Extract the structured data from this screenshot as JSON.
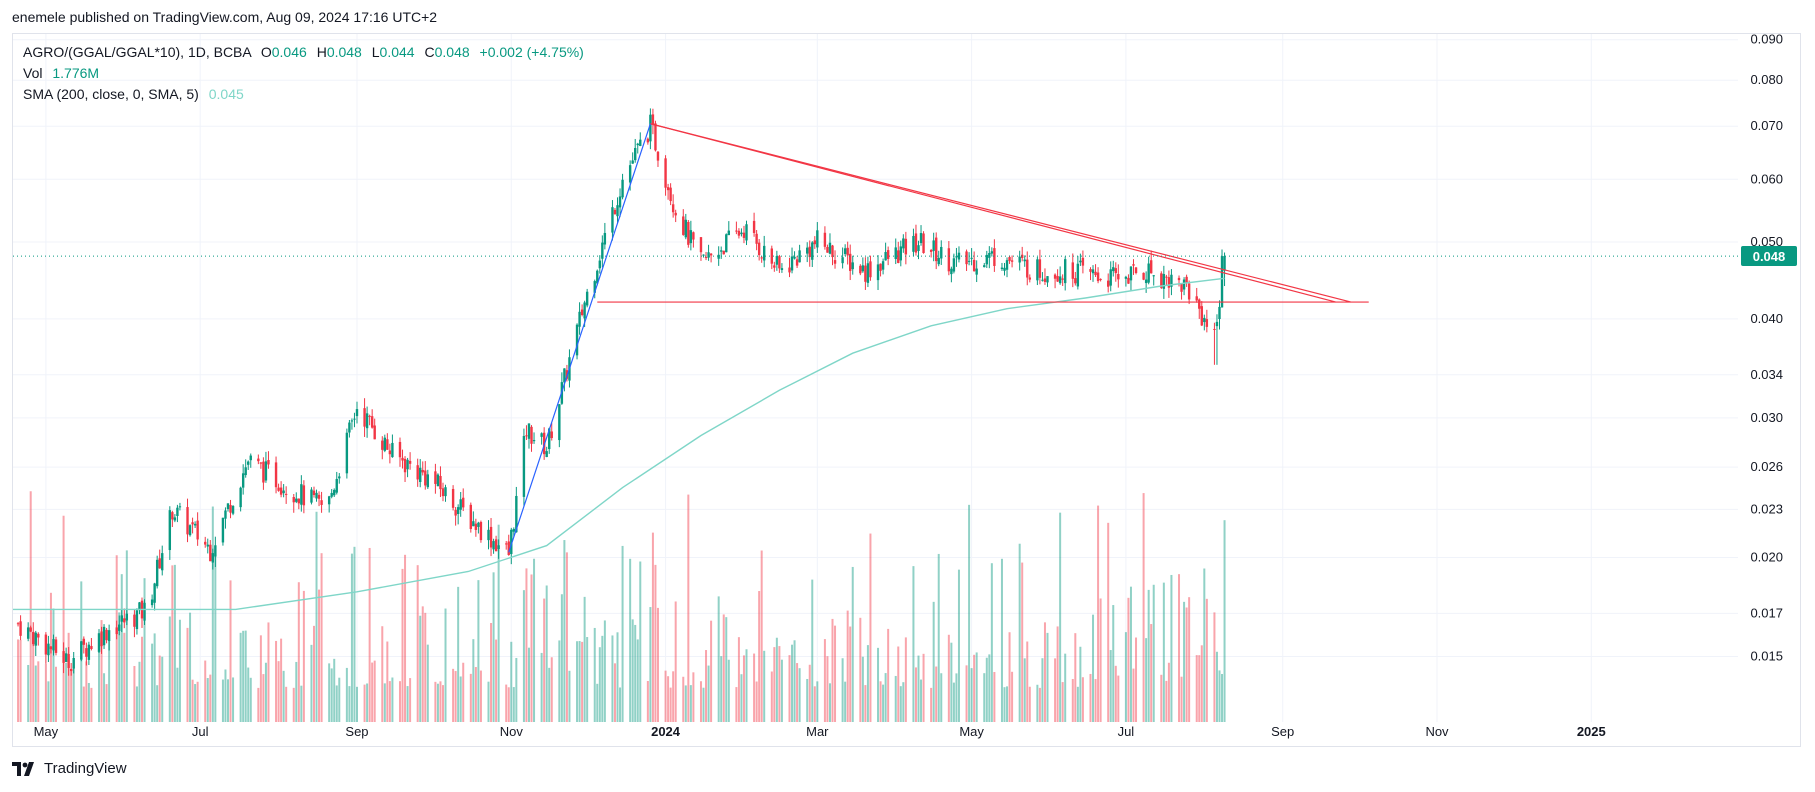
{
  "header": {
    "published_text": "enemele published on TradingView.com, Aug 09, 2024 17:16 UTC+2"
  },
  "legend": {
    "symbol": "AGRO/(GGAL/GGAL*10), 1D, BCBA",
    "open_label": "O",
    "open": "0.046",
    "high_label": "H",
    "high": "0.048",
    "low_label": "L",
    "low": "0.044",
    "close_label": "C",
    "close": "0.048",
    "change": "+0.002 (+4.75%)",
    "vol_label": "Vol",
    "vol": "1.776M",
    "sma_label": "SMA (200, close, 0, SMA, 5)",
    "sma": "0.045"
  },
  "last_price": "0.048",
  "brand": {
    "name": "TradingView",
    "icon": "tradingview-logo-icon"
  },
  "colors": {
    "up": "#089981",
    "down": "#f23645",
    "sma": "#7fd6c8",
    "trendline_red": "#f23645",
    "trendline_blue": "#2962ff",
    "grid": "#f0f3fa"
  },
  "chart_data": {
    "type": "candlestick",
    "y_scale": "log",
    "ylim": [
      0.0124,
      0.0915
    ],
    "x_range": [
      "2023-04-18",
      "2025-02-28"
    ],
    "y_ticks": [
      "0.090",
      "0.080",
      "0.070",
      "0.060",
      "0.050",
      "0.040",
      "0.034",
      "0.030",
      "0.026",
      "0.023",
      "0.020",
      "0.017",
      "0.015"
    ],
    "x_ticks": [
      {
        "label": "May",
        "date": "2023-05-01"
      },
      {
        "label": "Jul",
        "date": "2023-07-01"
      },
      {
        "label": "Sep",
        "date": "2023-09-01"
      },
      {
        "label": "Nov",
        "date": "2023-11-01"
      },
      {
        "label": "2024",
        "date": "2024-01-01"
      },
      {
        "label": "Mar",
        "date": "2024-03-01"
      },
      {
        "label": "May",
        "date": "2024-05-01"
      },
      {
        "label": "Jul",
        "date": "2024-07-01"
      },
      {
        "label": "Sep",
        "date": "2024-09-01"
      },
      {
        "label": "Nov",
        "date": "2024-11-01"
      },
      {
        "label": "2025",
        "date": "2025-01-01"
      }
    ],
    "price_path": [
      [
        "2023-04-20",
        0.0165
      ],
      [
        "2023-05-10",
        0.0148
      ],
      [
        "2023-05-25",
        0.0162
      ],
      [
        "2023-06-10",
        0.0172
      ],
      [
        "2023-06-20",
        0.023
      ],
      [
        "2023-07-05",
        0.0205
      ],
      [
        "2023-07-20",
        0.0265
      ],
      [
        "2023-08-05",
        0.0245
      ],
      [
        "2023-08-20",
        0.023
      ],
      [
        "2023-09-01",
        0.031
      ],
      [
        "2023-09-15",
        0.027
      ],
      [
        "2023-10-01",
        0.025
      ],
      [
        "2023-10-15",
        0.0225
      ],
      [
        "2023-10-31",
        0.0202
      ],
      [
        "2023-11-07",
        0.029
      ],
      [
        "2023-11-15",
        0.0275
      ],
      [
        "2023-11-30",
        0.042
      ],
      [
        "2023-12-15",
        0.06
      ],
      [
        "2023-12-26",
        0.07
      ],
      [
        "2024-01-05",
        0.055
      ],
      [
        "2024-01-15",
        0.047
      ],
      [
        "2024-02-01",
        0.052
      ],
      [
        "2024-02-15",
        0.046
      ],
      [
        "2024-03-01",
        0.05
      ],
      [
        "2024-03-20",
        0.046
      ],
      [
        "2024-04-10",
        0.05
      ],
      [
        "2024-04-25",
        0.047
      ],
      [
        "2024-05-10",
        0.048
      ],
      [
        "2024-05-28",
        0.046
      ],
      [
        "2024-06-10",
        0.046
      ],
      [
        "2024-06-25",
        0.045
      ],
      [
        "2024-07-10",
        0.046
      ],
      [
        "2024-07-25",
        0.044
      ],
      [
        "2024-08-05",
        0.038
      ],
      [
        "2024-08-09",
        0.048
      ]
    ],
    "sma_path": [
      [
        "2023-04-18",
        0.0172
      ],
      [
        "2023-06-01",
        0.0172
      ],
      [
        "2023-07-15",
        0.0172
      ],
      [
        "2023-09-01",
        0.0181
      ],
      [
        "2023-10-15",
        0.0192
      ],
      [
        "2023-11-15",
        0.0207
      ],
      [
        "2023-12-15",
        0.0245
      ],
      [
        "2024-01-15",
        0.0285
      ],
      [
        "2024-02-15",
        0.0325
      ],
      [
        "2024-03-15",
        0.0362
      ],
      [
        "2024-04-15",
        0.0392
      ],
      [
        "2024-05-15",
        0.0412
      ],
      [
        "2024-06-15",
        0.0425
      ],
      [
        "2024-07-15",
        0.044
      ],
      [
        "2024-08-09",
        0.045
      ]
    ],
    "volume_scale_max": 2.2,
    "trendlines": [
      {
        "color": "red",
        "points": [
          [
            "2023-12-26",
            0.0705
          ],
          [
            "2024-09-22",
            0.042
          ]
        ]
      },
      {
        "color": "red",
        "points": [
          [
            "2023-12-26",
            0.0705
          ],
          [
            "2024-09-28",
            0.042
          ]
        ]
      },
      {
        "color": "red",
        "points": [
          [
            "2023-12-05",
            0.042
          ],
          [
            "2024-10-05",
            0.042
          ]
        ]
      },
      {
        "color": "blue",
        "points": [
          [
            "2023-10-31",
            0.0203
          ],
          [
            "2023-12-26",
            0.0705
          ]
        ]
      }
    ],
    "last_price_line": 0.048
  }
}
